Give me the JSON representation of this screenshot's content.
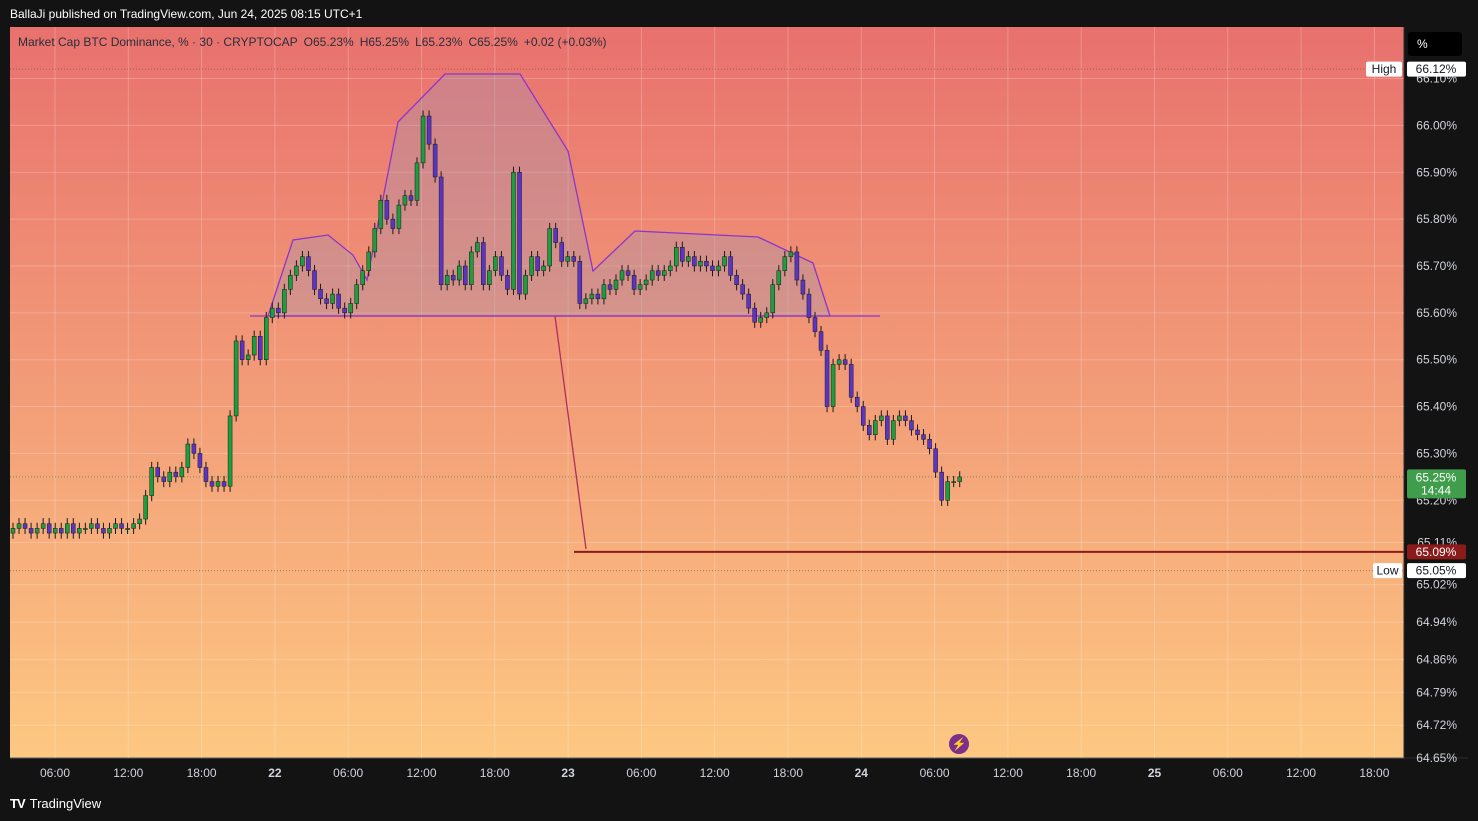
{
  "header": {
    "publish_text": "BallaJi published on TradingView.com, Jun 24, 2025 08:15 UTC+1"
  },
  "legend": {
    "symbol": "Market Cap BTC Dominance, % · 30 · CRYPTOCAP",
    "open": "O65.23%",
    "high": "H65.25%",
    "low": "L65.23%",
    "close": "C65.25%",
    "change": "+0.02 (+0.03%)"
  },
  "toolbar": {
    "scale_button": "%"
  },
  "footer": {
    "brand": "TradingView",
    "logo_glyph": "TV"
  },
  "colors": {
    "bg_top": "#e8716e",
    "bg_bottom": "#fdc882",
    "up": "#1b9e3e",
    "down": "#5a34c7",
    "pattern": "#8e35c9",
    "target_line": "#8b1a1a",
    "last_badge": "#3f9d4c"
  },
  "chart_data": {
    "type": "candlestick",
    "x_tick_labels": [
      "06:00",
      "12:00",
      "18:00",
      "22",
      "06:00",
      "12:00",
      "18:00",
      "23",
      "06:00",
      "12:00",
      "18:00",
      "24",
      "06:00",
      "12:00",
      "18:00",
      "25",
      "06:00",
      "12:00",
      "18:00"
    ],
    "y_tick_labels": [
      "66.10%",
      "66.00%",
      "65.90%",
      "65.80%",
      "65.70%",
      "65.60%",
      "65.50%",
      "65.40%",
      "65.30%",
      "65.20%",
      "65.11%",
      "65.02%",
      "64.94%",
      "64.86%",
      "64.79%",
      "64.72%",
      "64.65%"
    ],
    "y_tick_values": [
      66.1,
      66.0,
      65.9,
      65.8,
      65.7,
      65.6,
      65.5,
      65.4,
      65.3,
      65.2,
      65.11,
      65.02,
      64.94,
      64.86,
      64.79,
      64.72,
      64.65
    ],
    "ylim": [
      64.65,
      66.21
    ],
    "high_label": {
      "text": "High",
      "value": "66.12%",
      "price": 66.12
    },
    "low_label": {
      "text": "Low",
      "value": "65.05%",
      "price": 65.05
    },
    "target_label": {
      "value": "65.09%",
      "price": 65.09
    },
    "last_price": {
      "value": "65.25%",
      "countdown": "14:44",
      "price": 65.25
    },
    "closes": [
      65.14,
      65.15,
      65.14,
      65.13,
      65.14,
      65.15,
      65.13,
      65.14,
      65.13,
      65.15,
      65.13,
      65.14,
      65.14,
      65.15,
      65.14,
      65.13,
      65.14,
      65.15,
      65.14,
      65.14,
      65.15,
      65.16,
      65.21,
      65.27,
      65.25,
      65.24,
      65.26,
      65.25,
      65.27,
      65.32,
      65.3,
      65.27,
      65.24,
      65.23,
      65.24,
      65.23,
      65.38,
      65.54,
      65.5,
      65.51,
      65.55,
      65.5,
      65.59,
      65.61,
      65.6,
      65.65,
      65.68,
      65.7,
      65.72,
      65.69,
      65.65,
      65.63,
      65.62,
      65.64,
      65.61,
      65.6,
      65.62,
      65.66,
      65.69,
      65.73,
      65.78,
      65.84,
      65.8,
      65.78,
      65.83,
      65.85,
      65.84,
      65.92,
      66.02,
      65.96,
      65.89,
      65.66,
      65.68,
      65.67,
      65.7,
      65.66,
      65.73,
      65.75,
      65.66,
      65.69,
      65.72,
      65.68,
      65.65,
      65.9,
      65.64,
      65.68,
      65.72,
      65.69,
      65.7,
      65.78,
      65.75,
      65.71,
      65.72,
      65.71,
      65.62,
      65.63,
      65.64,
      65.63,
      65.66,
      65.65,
      65.67,
      65.69,
      65.68,
      65.65,
      65.66,
      65.67,
      65.69,
      65.68,
      65.69,
      65.7,
      65.74,
      65.71,
      65.72,
      65.7,
      65.71,
      65.7,
      65.69,
      65.7,
      65.72,
      65.68,
      65.66,
      65.64,
      65.61,
      65.58,
      65.59,
      65.6,
      65.66,
      65.69,
      65.72,
      65.73,
      65.67,
      65.64,
      65.59,
      65.56,
      65.52,
      65.4,
      65.49,
      65.5,
      65.49,
      65.42,
      65.4,
      65.36,
      65.34,
      65.37,
      65.38,
      65.33,
      65.37,
      65.38,
      65.37,
      65.35,
      65.34,
      65.33,
      65.31,
      65.26,
      65.2,
      65.24,
      65.24,
      65.25
    ]
  }
}
